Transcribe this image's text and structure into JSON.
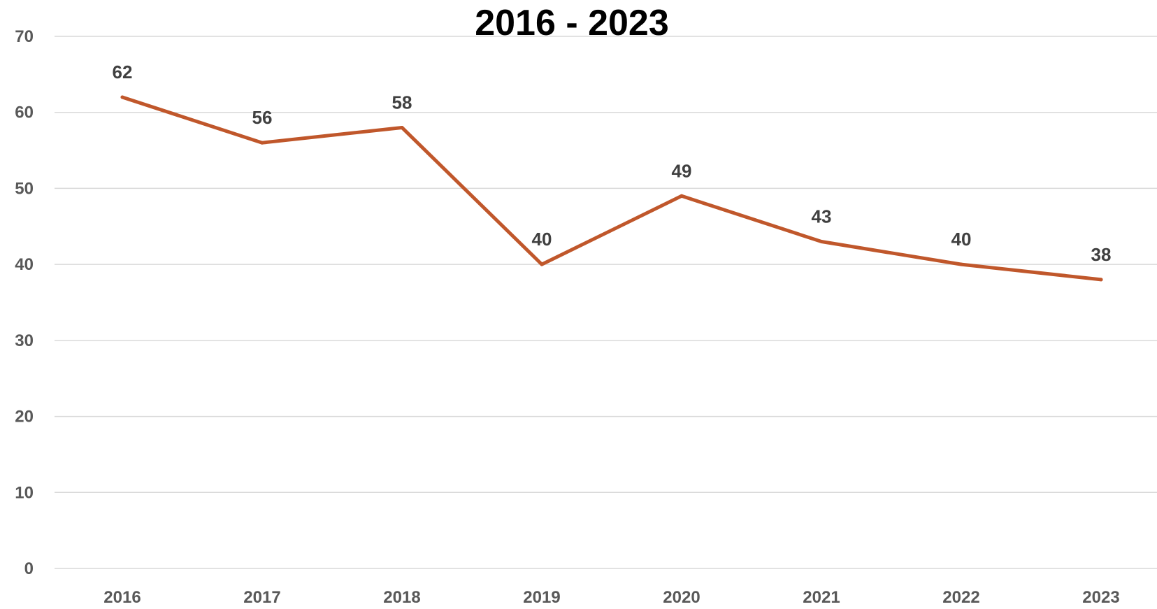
{
  "chart_data": {
    "type": "line",
    "title": "2016 - 2023",
    "xlabel": "",
    "ylabel": "",
    "categories": [
      "2016",
      "2017",
      "2018",
      "2019",
      "2020",
      "2021",
      "2022",
      "2023"
    ],
    "series": [
      {
        "values": [
          62,
          56,
          58,
          40,
          49,
          43,
          40,
          38
        ],
        "color": "#c0572b"
      }
    ],
    "data_labels": [
      "62",
      "56",
      "58",
      "40",
      "49",
      "43",
      "40",
      "38"
    ],
    "ylim": [
      0,
      70
    ],
    "yticks": [
      "0",
      "10",
      "20",
      "30",
      "40",
      "50",
      "60",
      "70"
    ],
    "grid": true,
    "legend": "none"
  }
}
